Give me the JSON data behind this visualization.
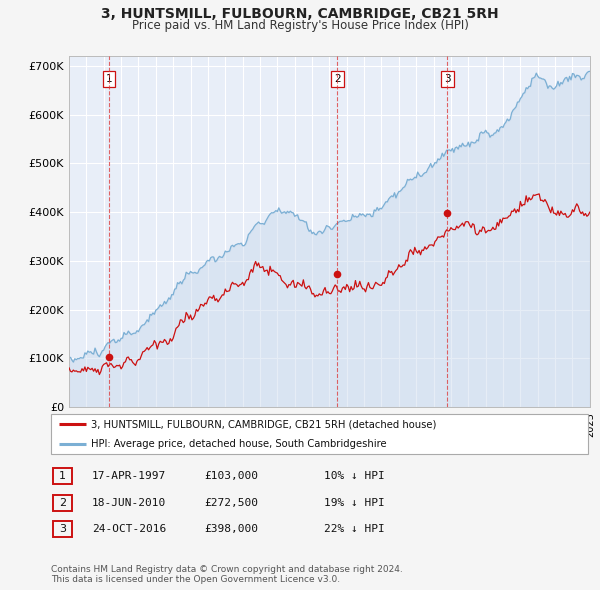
{
  "title": "3, HUNTSMILL, FULBOURN, CAMBRIDGE, CB21 5RH",
  "subtitle": "Price paid vs. HM Land Registry's House Price Index (HPI)",
  "fig_bg": "#f5f5f5",
  "plot_bg": "#e8eef8",
  "grid_color": "#ffffff",
  "hpi_line_color": "#7bafd4",
  "hpi_fill_color": "#c8d8ec",
  "property_line_color": "#cc1111",
  "dashed_color": "#dd3333",
  "transactions": [
    {
      "num": 1,
      "date": "17-APR-1997",
      "year_f": 1997.29,
      "price": 103000,
      "price_str": "£103,000",
      "pct_str": "10% ↓ HPI"
    },
    {
      "num": 2,
      "date": "18-JUN-2010",
      "year_f": 2010.46,
      "price": 272500,
      "price_str": "£272,500",
      "pct_str": "19% ↓ HPI"
    },
    {
      "num": 3,
      "date": "24-OCT-2016",
      "year_f": 2016.8,
      "price": 398000,
      "price_str": "£398,000",
      "pct_str": "22% ↓ HPI"
    }
  ],
  "ylim": [
    0,
    720000
  ],
  "yticks": [
    0,
    100000,
    200000,
    300000,
    400000,
    500000,
    600000,
    700000
  ],
  "ytick_labels": [
    "£0",
    "£100K",
    "£200K",
    "£300K",
    "£400K",
    "£500K",
    "£600K",
    "£700K"
  ],
  "legend_property_label": "3, HUNTSMILL, FULBOURN, CAMBRIDGE, CB21 5RH (detached house)",
  "legend_hpi_label": "HPI: Average price, detached house, South Cambridgeshire",
  "footnote1": "Contains HM Land Registry data © Crown copyright and database right 2024.",
  "footnote2": "This data is licensed under the Open Government Licence v3.0."
}
